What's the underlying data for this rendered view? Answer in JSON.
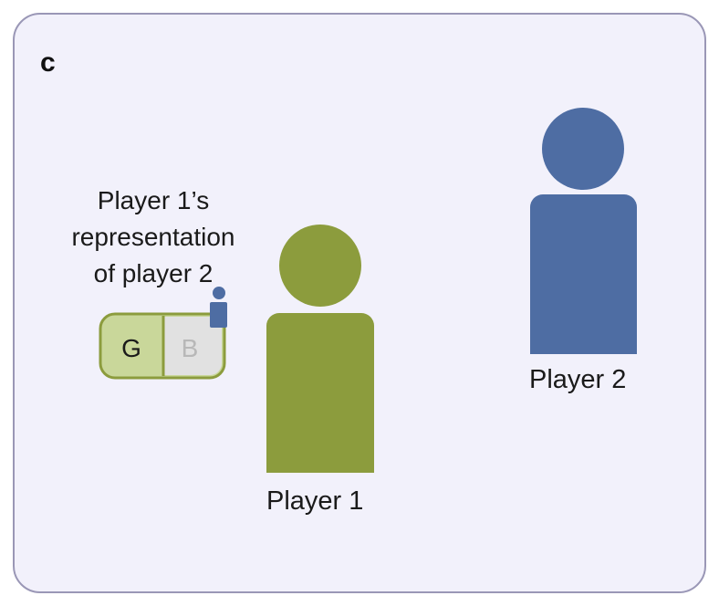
{
  "panel": {
    "label": "c"
  },
  "representation": {
    "caption": [
      "Player 1’s",
      "representation",
      "of player 2"
    ],
    "options": {
      "left": "G",
      "right": "B"
    }
  },
  "players": {
    "player1": {
      "label": "Player 1",
      "color": "#8c9c3d"
    },
    "player2": {
      "label": "Player 2",
      "color": "#4e6da3"
    }
  },
  "colors": {
    "panel_background": "#f2f1fb",
    "panel_border": "#9a97b6",
    "choice_box_fill": "#c9d79a",
    "choice_box_border": "#8c9c3d",
    "inactive_option_fill": "#e1e1e1",
    "inactive_option_text": "#b8b8b8"
  }
}
